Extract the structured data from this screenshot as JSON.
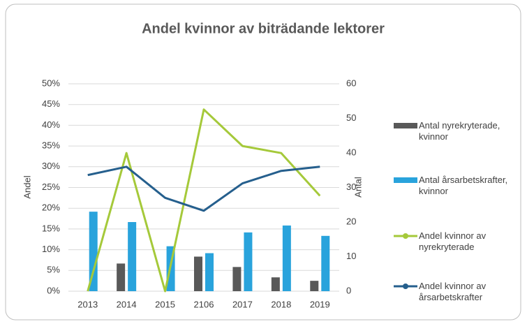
{
  "chart_data": {
    "type": "bar",
    "title": "Andel kvinnor av biträdande lektorer",
    "categories": [
      "2013",
      "2014",
      "2015",
      "2106",
      "2017",
      "2018",
      "2019"
    ],
    "ylabel": "Andel",
    "y2label": "Antal",
    "ylim": [
      0,
      50
    ],
    "yticks": [
      {
        "value": 0,
        "label": "0%"
      },
      {
        "value": 5,
        "label": "5%"
      },
      {
        "value": 10,
        "label": "10%"
      },
      {
        "value": 15,
        "label": "15%"
      },
      {
        "value": 20,
        "label": "20%"
      },
      {
        "value": 25,
        "label": "25%"
      },
      {
        "value": 30,
        "label": "30%"
      },
      {
        "value": 35,
        "label": "35%"
      },
      {
        "value": 40,
        "label": "40%"
      },
      {
        "value": 45,
        "label": "45%"
      },
      {
        "value": 50,
        "label": "50%"
      }
    ],
    "y2lim": [
      0,
      60
    ],
    "y2ticks": [
      0,
      10,
      20,
      30,
      40,
      50,
      60
    ],
    "grid": true,
    "legend": "right",
    "series": [
      {
        "name": "Antal nyrekryterade, kvinnor",
        "type": "bar",
        "axis": "y2",
        "color": "#595959",
        "values": [
          0,
          8,
          0,
          10,
          7,
          4,
          3
        ]
      },
      {
        "name": "Antal årsarbetskrafter, kvinnor",
        "type": "bar",
        "axis": "y2",
        "color": "#29a3dc",
        "values": [
          23,
          20,
          13,
          11,
          17,
          19,
          16
        ]
      },
      {
        "name": "Andel kvinnor av nyrekryterade",
        "type": "line",
        "color": "#a5c93a",
        "values": [
          0,
          33.3,
          0,
          43.8,
          35,
          33.3,
          23
        ]
      },
      {
        "name": "Andel kvinnor av årsarbetskrafter",
        "type": "line",
        "color": "#255f8d",
        "values": [
          28,
          30,
          22.5,
          19.4,
          26,
          29,
          30
        ]
      }
    ]
  }
}
